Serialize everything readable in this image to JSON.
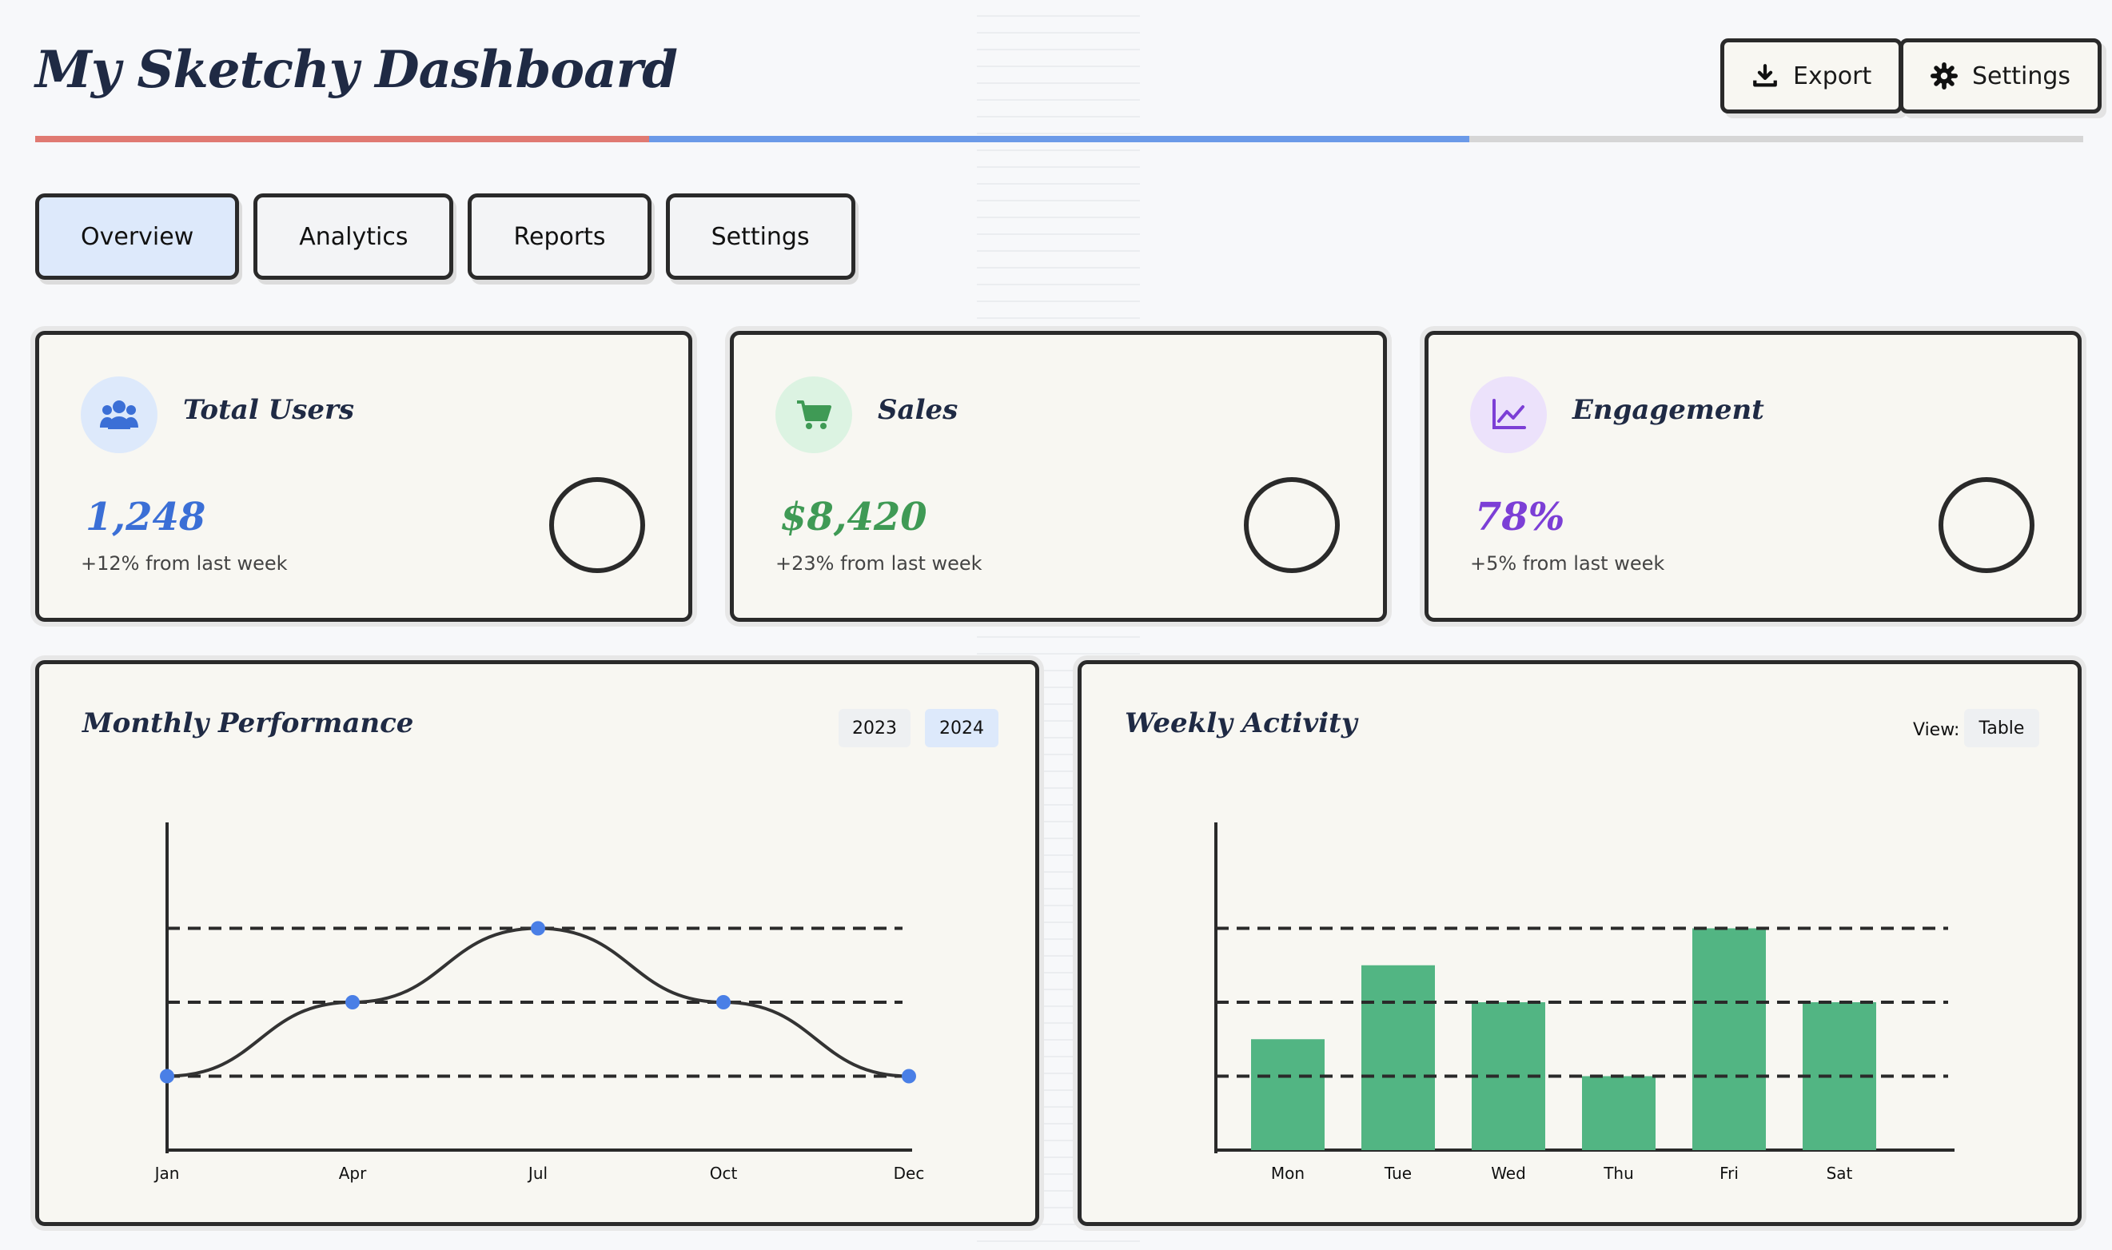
{
  "header": {
    "title": "My Sketchy Dashboard",
    "export_label": "Export",
    "settings_label": "Settings"
  },
  "tabs": [
    {
      "label": "Overview",
      "active": true
    },
    {
      "label": "Analytics",
      "active": false
    },
    {
      "label": "Reports",
      "active": false
    },
    {
      "label": "Settings",
      "active": false
    }
  ],
  "stats": [
    {
      "label": "Total Users",
      "value": "1,248",
      "delta": "+12% from last week",
      "icon": "users-icon",
      "color": "#3b6fd6",
      "icon_bg": "#dde9fb"
    },
    {
      "label": "Sales",
      "value": "$8,420",
      "delta": "+23% from last week",
      "icon": "cart-icon",
      "color": "#3f9a55",
      "icon_bg": "#dcf3e2"
    },
    {
      "label": "Engagement",
      "value": "78%",
      "delta": "+5% from last week",
      "icon": "line-chart-icon",
      "color": "#7c3fd6",
      "icon_bg": "#ece2fb"
    }
  ],
  "monthly": {
    "title": "Monthly Performance",
    "year_options": [
      "2023",
      "2024"
    ],
    "selected_year": "2024"
  },
  "weekly": {
    "title": "Weekly Activity",
    "view_label": "View:",
    "view_option": "Table"
  },
  "colors": {
    "accent_blue": "#4a7fe6",
    "bar_green": "#52b583",
    "underline_red": "#e07a72",
    "underline_gray": "#d6d6d6"
  },
  "chart_data": [
    {
      "type": "line",
      "x": [
        "Jan",
        "Apr",
        "Jul",
        "Oct",
        "Dec"
      ],
      "values": [
        1,
        2,
        3,
        2,
        1
      ],
      "ylim": [
        0,
        4
      ]
    },
    {
      "type": "bar",
      "categories": [
        "Mon",
        "Tue",
        "Wed",
        "Thu",
        "Fri",
        "Sat"
      ],
      "values": [
        1.5,
        2.5,
        2,
        1,
        3,
        2
      ],
      "ylim": [
        0,
        4
      ]
    }
  ]
}
